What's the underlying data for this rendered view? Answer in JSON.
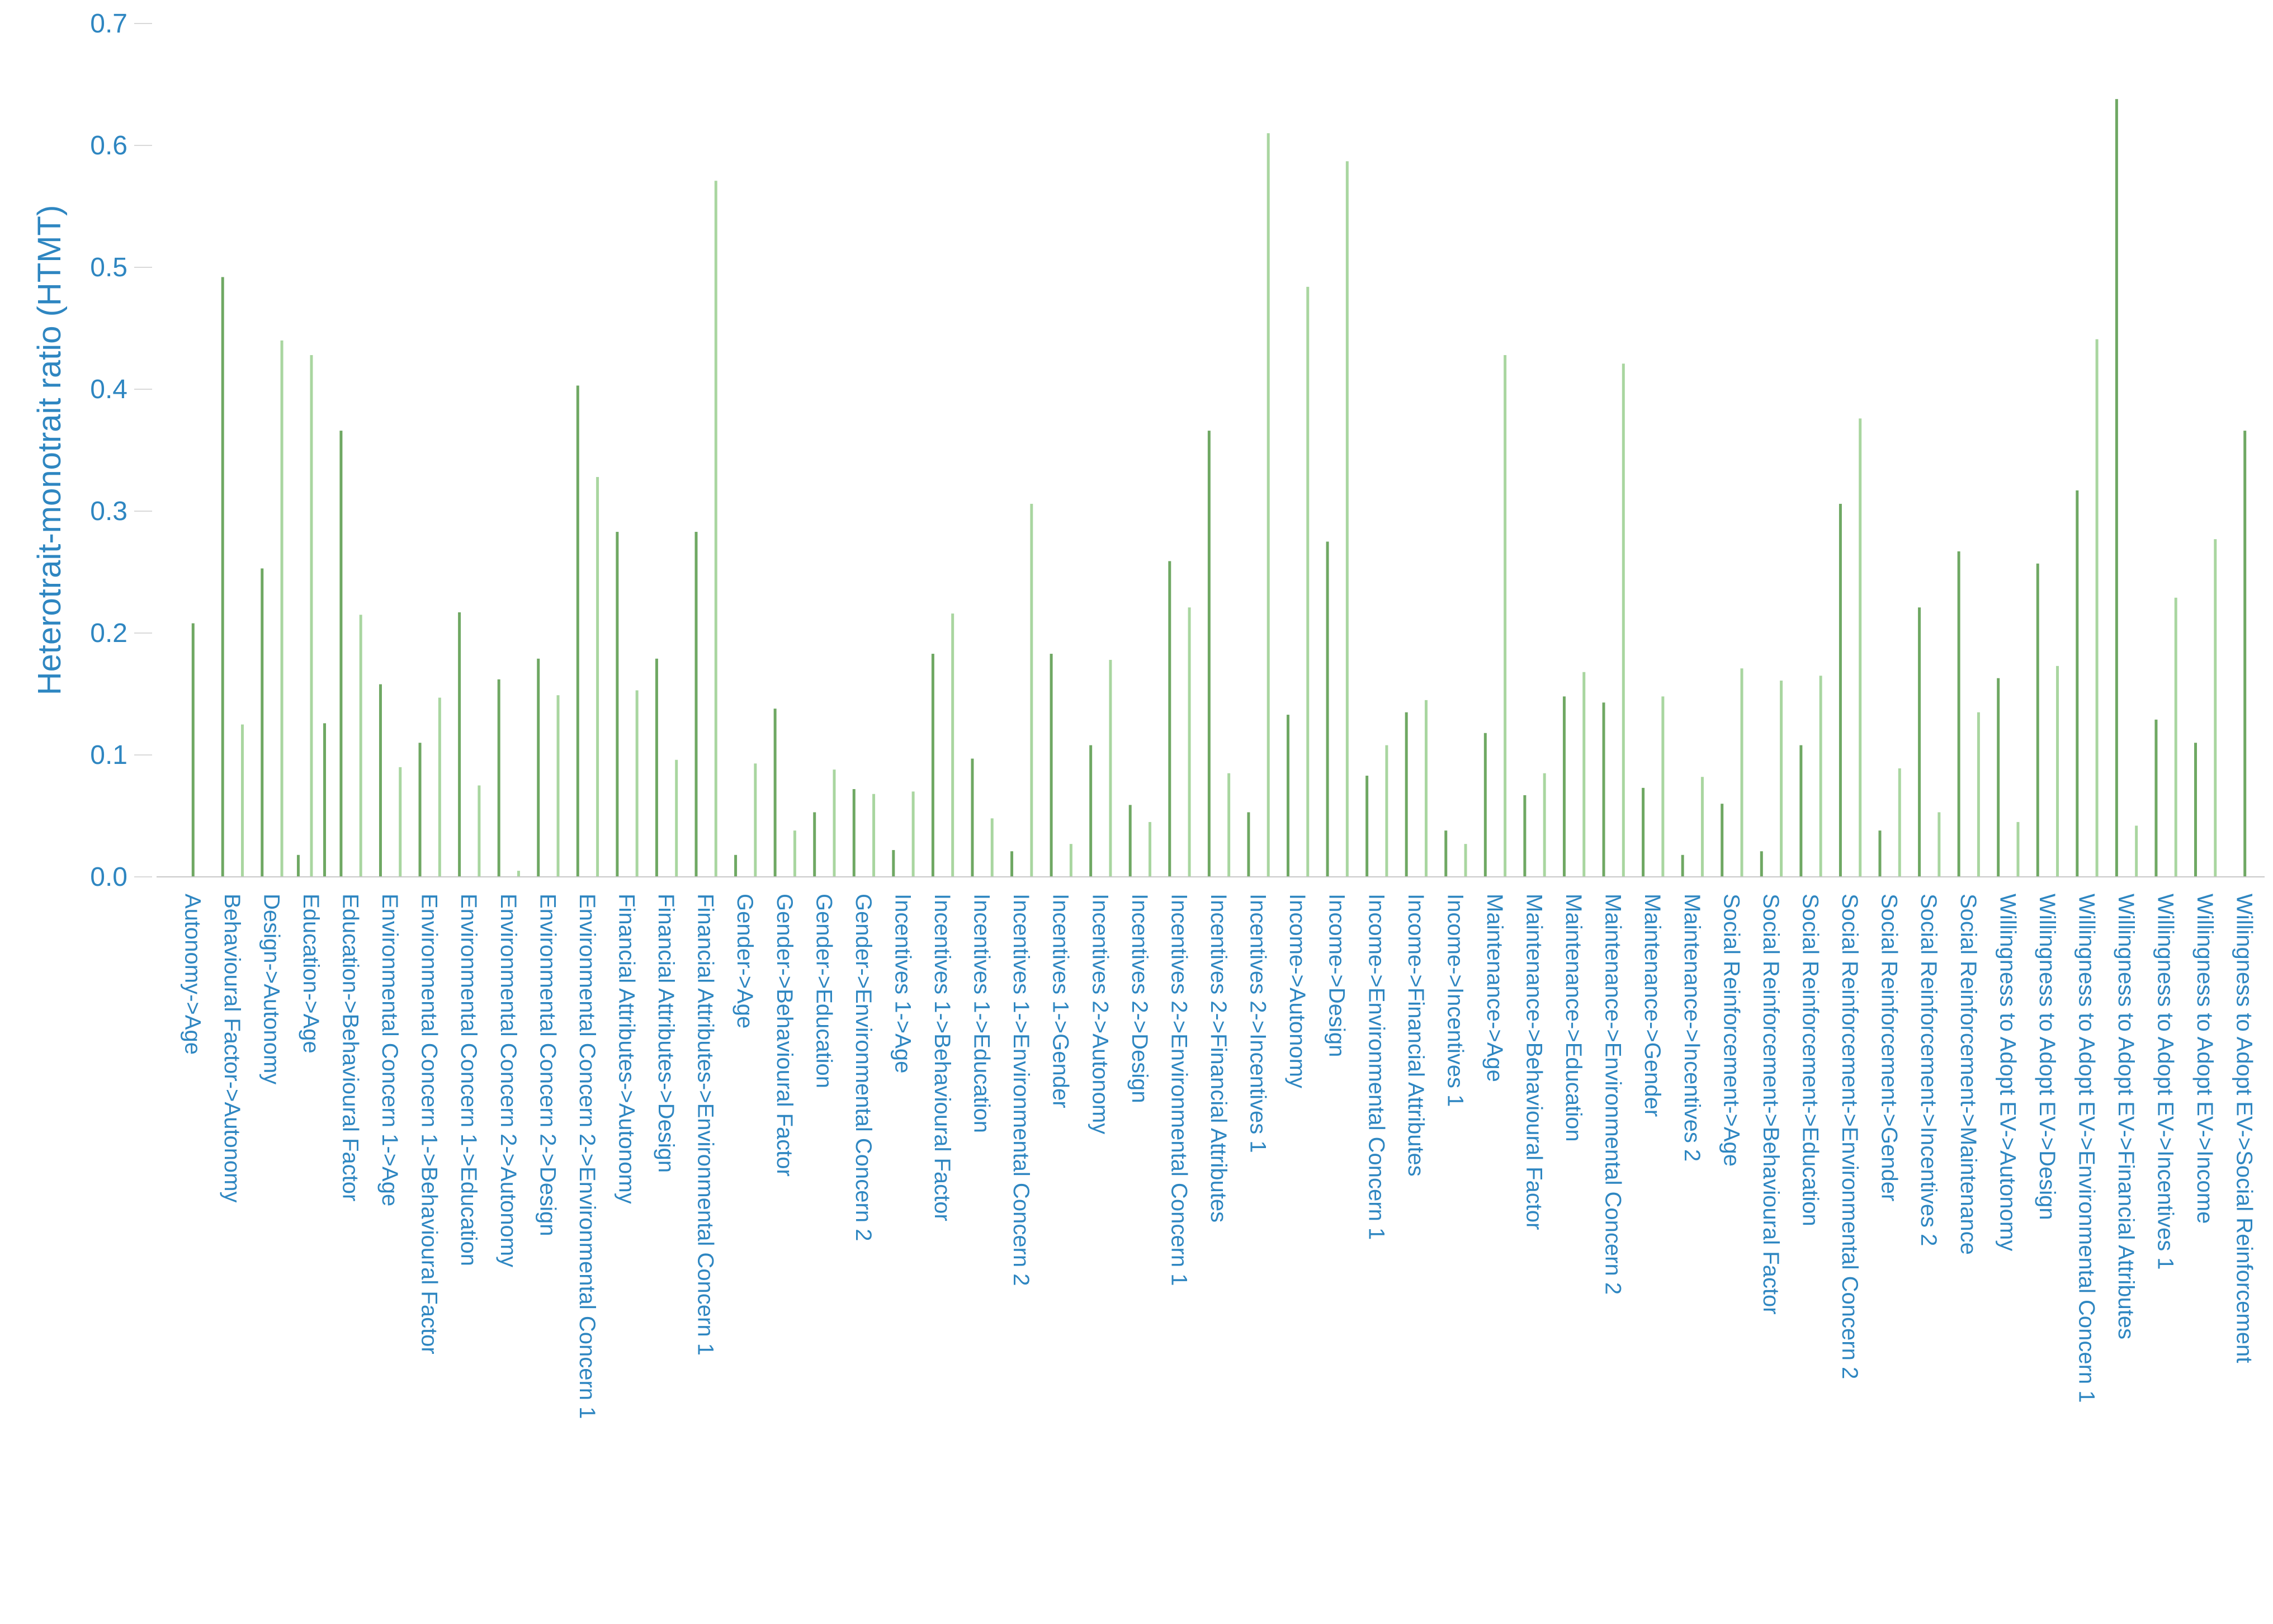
{
  "chart_data": {
    "type": "bar",
    "title": "",
    "xlabel": "",
    "ylabel": "Heterotrait-monotrait ratio (HTMT)",
    "ylim": [
      0,
      0.7
    ],
    "yticks": [
      "0.0",
      "0.1",
      "0.2",
      "0.3",
      "0.4",
      "0.5",
      "0.6",
      "0.7"
    ],
    "grid": false,
    "legend": "none",
    "colors": {
      "bar_light": "#a9d6a0",
      "bar_dark": "#6fa863",
      "text": "#2e86c1"
    },
    "groups": [
      {
        "category": "Autonomy->Age",
        "values": [
          0.208
        ]
      },
      {
        "category": "Behavioural Factor->Autonomy",
        "values": [
          0.492,
          0.125
        ]
      },
      {
        "category": "Design->Autonomy",
        "values": [
          0.253,
          0.44
        ]
      },
      {
        "category": "Education->Age",
        "values": [
          0.018,
          0.428,
          0.126
        ]
      },
      {
        "category": "Education->Behavioural Factor",
        "values": [
          0.366,
          0.215
        ]
      },
      {
        "category": "Environmental Concern 1->Age",
        "values": [
          0.158,
          0.09
        ]
      },
      {
        "category": "Environmental Concern 1->Behavioural Factor",
        "values": [
          0.11,
          0.147
        ]
      },
      {
        "category": "Environmental Concern 1->Education",
        "values": [
          0.217,
          0.075
        ]
      },
      {
        "category": "Environmental Concern 2->Autonomy",
        "values": [
          0.162,
          0.005
        ]
      },
      {
        "category": "Environmental Concern 2->Design",
        "values": [
          0.179,
          0.149
        ]
      },
      {
        "category": "Environmental Concern 2->Environmental Concern 1",
        "values": [
          0.403,
          0.328
        ]
      },
      {
        "category": "Financial Attributes->Autonomy",
        "values": [
          0.283,
          0.153
        ]
      },
      {
        "category": "Financial Attributes->Design",
        "values": [
          0.179,
          0.096
        ]
      },
      {
        "category": "Financial Attributes->Environmental Concern 1",
        "values": [
          0.283,
          0.571
        ]
      },
      {
        "category": "Gender->Age",
        "values": [
          0.018,
          0.093
        ]
      },
      {
        "category": "Gender->Behavioural Factor",
        "values": [
          0.138,
          0.038
        ]
      },
      {
        "category": "Gender->Education",
        "values": [
          0.053,
          0.088
        ]
      },
      {
        "category": "Gender->Environmental Concern 2",
        "values": [
          0.072,
          0.068
        ]
      },
      {
        "category": "Incentives 1->Age",
        "values": [
          0.022,
          0.07
        ]
      },
      {
        "category": "Incentives 1->Behavioural Factor",
        "values": [
          0.183,
          0.216
        ]
      },
      {
        "category": "Incentives 1->Education",
        "values": [
          0.097,
          0.048
        ]
      },
      {
        "category": "Incentives 1->Environmental Concern 2",
        "values": [
          0.021,
          0.306
        ]
      },
      {
        "category": "Incentives 1->Gender",
        "values": [
          0.183,
          0.027
        ]
      },
      {
        "category": "Incentives 2->Autonomy",
        "values": [
          0.108,
          0.178
        ]
      },
      {
        "category": "Incentives 2->Design",
        "values": [
          0.059,
          0.045
        ]
      },
      {
        "category": "Incentives 2->Environmental Concern 1",
        "values": [
          0.259,
          0.221
        ]
      },
      {
        "category": "Incentives 2->Financial Attributes",
        "values": [
          0.366,
          0.085
        ]
      },
      {
        "category": "Incentives 2->Incentives 1",
        "values": [
          0.053,
          0.61
        ]
      },
      {
        "category": "Income->Autonomy",
        "values": [
          0.133,
          0.484
        ]
      },
      {
        "category": "Income->Design",
        "values": [
          0.275,
          0.587
        ]
      },
      {
        "category": "Income->Environmental Concern 1",
        "values": [
          0.083,
          0.108
        ]
      },
      {
        "category": "Income->Financial Attributes",
        "values": [
          0.135,
          0.145
        ]
      },
      {
        "category": "Income->Incentives 1",
        "values": [
          0.038,
          0.027
        ]
      },
      {
        "category": "Maintenance->Age",
        "values": [
          0.118,
          0.428
        ]
      },
      {
        "category": "Maintenance->Behavioural Factor",
        "values": [
          0.067,
          0.085
        ]
      },
      {
        "category": "Maintenance->Education",
        "values": [
          0.148,
          0.168
        ]
      },
      {
        "category": "Maintenance->Environmental Concern 2",
        "values": [
          0.143,
          0.421
        ]
      },
      {
        "category": "Maintenance->Gender",
        "values": [
          0.073,
          0.148
        ]
      },
      {
        "category": "Maintenance->Incentives 2",
        "values": [
          0.018,
          0.082
        ]
      },
      {
        "category": "Social Reinforcement->Age",
        "values": [
          0.06,
          0.171
        ]
      },
      {
        "category": "Social Reinforcement->Behavioural Factor",
        "values": [
          0.021,
          0.161
        ]
      },
      {
        "category": "Social Reinforcement->Education",
        "values": [
          0.108,
          0.165
        ]
      },
      {
        "category": "Social Reinforcement->Environmental Concern 2",
        "values": [
          0.306,
          0.376
        ]
      },
      {
        "category": "Social Reinforcement->Gender",
        "values": [
          0.038,
          0.089
        ]
      },
      {
        "category": "Social Reinforcement->Incentives 2",
        "values": [
          0.221,
          0.053
        ]
      },
      {
        "category": "Social Reinforcement->Maintenance",
        "values": [
          0.267,
          0.135
        ]
      },
      {
        "category": "Willingness to Adopt EV->Autonomy",
        "values": [
          0.163,
          0.045
        ]
      },
      {
        "category": "Willingness to Adopt EV->Design",
        "values": [
          0.257,
          0.173
        ]
      },
      {
        "category": "Willingness to Adopt EV->Environmental Concern 1",
        "values": [
          0.317,
          0.441
        ]
      },
      {
        "category": "Willingness to Adopt EV->Financial Attributes",
        "values": [
          0.638,
          0.042
        ]
      },
      {
        "category": "Willingness to Adopt EV->Incentives 1",
        "values": [
          0.129,
          0.229
        ]
      },
      {
        "category": "Willingness to Adopt EV->Income",
        "values": [
          0.11,
          0.277
        ]
      },
      {
        "category": "Willingness to Adopt EV->Social Reinforcement",
        "values": [
          0.366
        ]
      }
    ]
  }
}
